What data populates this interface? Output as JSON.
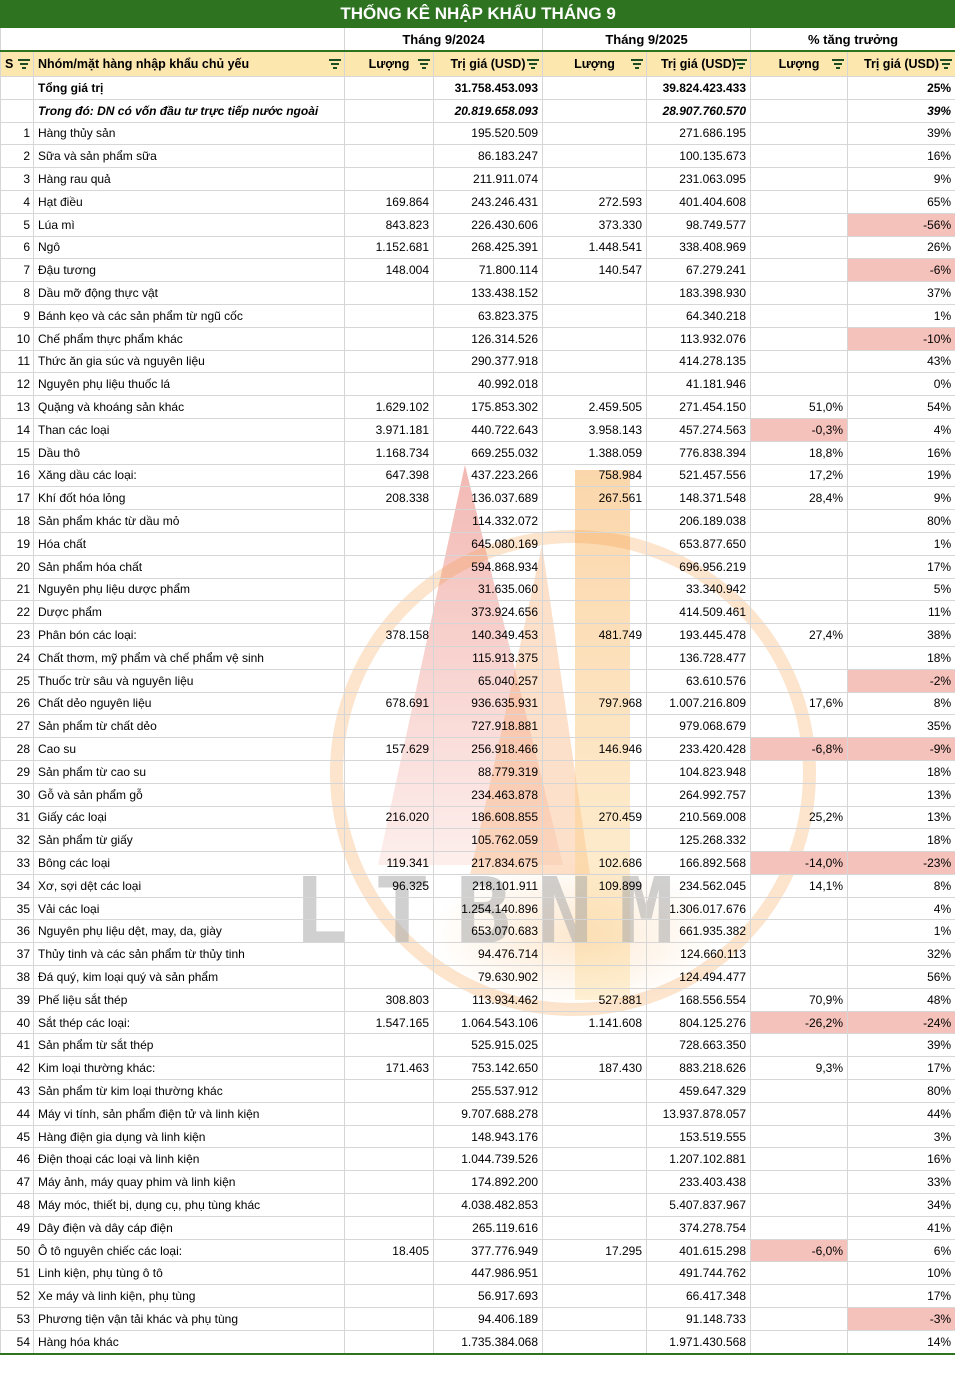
{
  "title": "THỐNG KÊ NHẬP KHẨU THÁNG 9",
  "groups": {
    "g2024": "Tháng 9/2024",
    "g2025": "Tháng 9/2025",
    "growth": "% tăng trưởng"
  },
  "columns": {
    "stt": "S",
    "name": "Nhóm/mặt hàng nhập khẩu chủ yếu",
    "qty": "Lượng",
    "value": "Trị giá (USD)"
  },
  "watermark": {
    "text": "LTBNM"
  },
  "colors": {
    "title_green": "#2E7320",
    "header_yellow": "#FCE7AE",
    "negative_pink": "#F4C2BB"
  },
  "summary": [
    {
      "stt": "",
      "name": "Tổng giá trị",
      "l24": "",
      "t24": "31.758.453.093",
      "l25": "",
      "t25": "39.824.423.433",
      "gl": "",
      "gt": "25%"
    },
    {
      "stt": "",
      "name": "Trong đó: DN có vốn đầu tư trực tiếp nước ngoài",
      "l24": "",
      "t24": "20.819.658.093",
      "l25": "",
      "t25": "28.907.760.570",
      "gl": "",
      "gt": "39%"
    }
  ],
  "rows": [
    {
      "stt": "1",
      "name": "Hàng thủy sản",
      "l24": "",
      "t24": "195.520.509",
      "l25": "",
      "t25": "271.686.195",
      "gl": "",
      "gt": "39%"
    },
    {
      "stt": "2",
      "name": "Sữa và sản phẩm sữa",
      "l24": "",
      "t24": "86.183.247",
      "l25": "",
      "t25": "100.135.673",
      "gl": "",
      "gt": "16%"
    },
    {
      "stt": "3",
      "name": "Hàng rau quả",
      "l24": "",
      "t24": "211.911.074",
      "l25": "",
      "t25": "231.063.095",
      "gl": "",
      "gt": "9%"
    },
    {
      "stt": "4",
      "name": "Hạt điều",
      "l24": "169.864",
      "t24": "243.246.431",
      "l25": "272.593",
      "t25": "401.404.608",
      "gl": "",
      "gt": "65%"
    },
    {
      "stt": "5",
      "name": "Lúa mì",
      "l24": "843.823",
      "t24": "226.430.606",
      "l25": "373.330",
      "t25": "98.749.577",
      "gl": "",
      "gt": "-56%"
    },
    {
      "stt": "6",
      "name": "Ngô",
      "l24": "1.152.681",
      "t24": "268.425.391",
      "l25": "1.448.541",
      "t25": "338.408.969",
      "gl": "",
      "gt": "26%"
    },
    {
      "stt": "7",
      "name": "Đậu tương",
      "l24": "148.004",
      "t24": "71.800.114",
      "l25": "140.547",
      "t25": "67.279.241",
      "gl": "",
      "gt": "-6%"
    },
    {
      "stt": "8",
      "name": "Dầu mỡ động thực vật",
      "l24": "",
      "t24": "133.438.152",
      "l25": "",
      "t25": "183.398.930",
      "gl": "",
      "gt": "37%"
    },
    {
      "stt": "9",
      "name": "Bánh kẹo và các sản phẩm từ ngũ cốc",
      "l24": "",
      "t24": "63.823.375",
      "l25": "",
      "t25": "64.340.218",
      "gl": "",
      "gt": "1%"
    },
    {
      "stt": "10",
      "name": "Chế phẩm thực phẩm khác",
      "l24": "",
      "t24": "126.314.526",
      "l25": "",
      "t25": "113.932.076",
      "gl": "",
      "gt": "-10%"
    },
    {
      "stt": "11",
      "name": "Thức ăn gia súc và nguyên liệu",
      "l24": "",
      "t24": "290.377.918",
      "l25": "",
      "t25": "414.278.135",
      "gl": "",
      "gt": "43%"
    },
    {
      "stt": "12",
      "name": "Nguyên phụ liệu thuốc lá",
      "l24": "",
      "t24": "40.992.018",
      "l25": "",
      "t25": "41.181.946",
      "gl": "",
      "gt": "0%"
    },
    {
      "stt": "13",
      "name": "Quặng và khoáng sản khác",
      "l24": "1.629.102",
      "t24": "175.853.302",
      "l25": "2.459.505",
      "t25": "271.454.150",
      "gl": "51,0%",
      "gt": "54%"
    },
    {
      "stt": "14",
      "name": "Than các loại",
      "l24": "3.971.181",
      "t24": "440.722.643",
      "l25": "3.958.143",
      "t25": "457.274.563",
      "gl": "-0,3%",
      "gt": "4%"
    },
    {
      "stt": "15",
      "name": "Dầu thô",
      "l24": "1.168.734",
      "t24": "669.255.032",
      "l25": "1.388.059",
      "t25": "776.838.394",
      "gl": "18,8%",
      "gt": "16%"
    },
    {
      "stt": "16",
      "name": "Xăng dầu các loại:",
      "l24": "647.398",
      "t24": "437.223.266",
      "l25": "758.984",
      "t25": "521.457.556",
      "gl": "17,2%",
      "gt": "19%"
    },
    {
      "stt": "17",
      "name": "Khí đốt hóa lỏng",
      "l24": "208.338",
      "t24": "136.037.689",
      "l25": "267.561",
      "t25": "148.371.548",
      "gl": "28,4%",
      "gt": "9%"
    },
    {
      "stt": "18",
      "name": "Sản phẩm khác từ dầu mỏ",
      "l24": "",
      "t24": "114.332.072",
      "l25": "",
      "t25": "206.189.038",
      "gl": "",
      "gt": "80%"
    },
    {
      "stt": "19",
      "name": "Hóa chất",
      "l24": "",
      "t24": "645.080.169",
      "l25": "",
      "t25": "653.877.650",
      "gl": "",
      "gt": "1%"
    },
    {
      "stt": "20",
      "name": "Sản phẩm hóa chất",
      "l24": "",
      "t24": "594.868.934",
      "l25": "",
      "t25": "696.956.219",
      "gl": "",
      "gt": "17%"
    },
    {
      "stt": "21",
      "name": "Nguyên phụ liệu dược phẩm",
      "l24": "",
      "t24": "31.635.060",
      "l25": "",
      "t25": "33.340.942",
      "gl": "",
      "gt": "5%"
    },
    {
      "stt": "22",
      "name": "Dược phẩm",
      "l24": "",
      "t24": "373.924.656",
      "l25": "",
      "t25": "414.509.461",
      "gl": "",
      "gt": "11%"
    },
    {
      "stt": "23",
      "name": "Phân bón các loại:",
      "l24": "378.158",
      "t24": "140.349.453",
      "l25": "481.749",
      "t25": "193.445.478",
      "gl": "27,4%",
      "gt": "38%"
    },
    {
      "stt": "24",
      "name": "Chất thơm, mỹ phẩm và chế phẩm vệ sinh",
      "l24": "",
      "t24": "115.913.375",
      "l25": "",
      "t25": "136.728.477",
      "gl": "",
      "gt": "18%"
    },
    {
      "stt": "25",
      "name": "Thuốc trừ sâu và nguyên liệu",
      "l24": "",
      "t24": "65.040.257",
      "l25": "",
      "t25": "63.610.576",
      "gl": "",
      "gt": "-2%"
    },
    {
      "stt": "26",
      "name": "Chất dẻo nguyên liệu",
      "l24": "678.691",
      "t24": "936.635.931",
      "l25": "797.968",
      "t25": "1.007.216.809",
      "gl": "17,6%",
      "gt": "8%"
    },
    {
      "stt": "27",
      "name": "Sản phẩm từ chất dẻo",
      "l24": "",
      "t24": "727.918.881",
      "l25": "",
      "t25": "979.068.679",
      "gl": "",
      "gt": "35%"
    },
    {
      "stt": "28",
      "name": "Cao su",
      "l24": "157.629",
      "t24": "256.918.466",
      "l25": "146.946",
      "t25": "233.420.428",
      "gl": "-6,8%",
      "gt": "-9%"
    },
    {
      "stt": "29",
      "name": "Sản phẩm từ cao su",
      "l24": "",
      "t24": "88.779.319",
      "l25": "",
      "t25": "104.823.948",
      "gl": "",
      "gt": "18%"
    },
    {
      "stt": "30",
      "name": "Gỗ và sản phẩm gỗ",
      "l24": "",
      "t24": "234.463.878",
      "l25": "",
      "t25": "264.992.757",
      "gl": "",
      "gt": "13%"
    },
    {
      "stt": "31",
      "name": "Giấy các loại",
      "l24": "216.020",
      "t24": "186.608.855",
      "l25": "270.459",
      "t25": "210.569.008",
      "gl": "25,2%",
      "gt": "13%"
    },
    {
      "stt": "32",
      "name": "Sản phẩm từ giấy",
      "l24": "",
      "t24": "105.762.059",
      "l25": "",
      "t25": "125.268.332",
      "gl": "",
      "gt": "18%"
    },
    {
      "stt": "33",
      "name": "Bông các loại",
      "l24": "119.341",
      "t24": "217.834.675",
      "l25": "102.686",
      "t25": "166.892.568",
      "gl": "-14,0%",
      "gt": "-23%"
    },
    {
      "stt": "34",
      "name": "Xơ, sợi dệt các loại",
      "l24": "96.325",
      "t24": "218.101.911",
      "l25": "109.899",
      "t25": "234.562.045",
      "gl": "14,1%",
      "gt": "8%"
    },
    {
      "stt": "35",
      "name": "Vải các loại",
      "l24": "",
      "t24": "1.254.140.896",
      "l25": "",
      "t25": "1.306.017.676",
      "gl": "",
      "gt": "4%"
    },
    {
      "stt": "36",
      "name": "Nguyên phụ liệu dệt, may, da, giày",
      "l24": "",
      "t24": "653.070.683",
      "l25": "",
      "t25": "661.935.382",
      "gl": "",
      "gt": "1%"
    },
    {
      "stt": "37",
      "name": "Thủy tinh và các sản phẩm từ thủy tinh",
      "l24": "",
      "t24": "94.476.714",
      "l25": "",
      "t25": "124.660.113",
      "gl": "",
      "gt": "32%"
    },
    {
      "stt": "38",
      "name": "Đá quý, kim loại quý và sản phẩm",
      "l24": "",
      "t24": "79.630.902",
      "l25": "",
      "t25": "124.494.477",
      "gl": "",
      "gt": "56%"
    },
    {
      "stt": "39",
      "name": "Phế liệu sắt thép",
      "l24": "308.803",
      "t24": "113.934.462",
      "l25": "527.881",
      "t25": "168.556.554",
      "gl": "70,9%",
      "gt": "48%"
    },
    {
      "stt": "40",
      "name": "Sắt thép các loại:",
      "l24": "1.547.165",
      "t24": "1.064.543.106",
      "l25": "1.141.608",
      "t25": "804.125.276",
      "gl": "-26,2%",
      "gt": "-24%"
    },
    {
      "stt": "41",
      "name": "Sản phẩm từ sắt thép",
      "l24": "",
      "t24": "525.915.025",
      "l25": "",
      "t25": "728.663.350",
      "gl": "",
      "gt": "39%"
    },
    {
      "stt": "42",
      "name": "Kim loại thường khác:",
      "l24": "171.463",
      "t24": "753.142.650",
      "l25": "187.430",
      "t25": "883.218.626",
      "gl": "9,3%",
      "gt": "17%"
    },
    {
      "stt": "43",
      "name": "Sản phẩm từ kim loại thường khác",
      "l24": "",
      "t24": "255.537.912",
      "l25": "",
      "t25": "459.647.329",
      "gl": "",
      "gt": "80%"
    },
    {
      "stt": "44",
      "name": "Máy vi tính, sản phẩm điện tử và linh kiện",
      "l24": "",
      "t24": "9.707.688.278",
      "l25": "",
      "t25": "13.937.878.057",
      "gl": "",
      "gt": "44%"
    },
    {
      "stt": "45",
      "name": "Hàng điện gia dụng và linh kiện",
      "l24": "",
      "t24": "148.943.176",
      "l25": "",
      "t25": "153.519.555",
      "gl": "",
      "gt": "3%"
    },
    {
      "stt": "46",
      "name": "Điện thoại các loại và linh kiện",
      "l24": "",
      "t24": "1.044.739.526",
      "l25": "",
      "t25": "1.207.102.881",
      "gl": "",
      "gt": "16%"
    },
    {
      "stt": "47",
      "name": "Máy ảnh, máy quay phim và linh kiện",
      "l24": "",
      "t24": "174.892.200",
      "l25": "",
      "t25": "233.403.438",
      "gl": "",
      "gt": "33%"
    },
    {
      "stt": "48",
      "name": "Máy móc, thiết bị, dụng cụ, phụ tùng khác",
      "l24": "",
      "t24": "4.038.482.853",
      "l25": "",
      "t25": "5.407.837.967",
      "gl": "",
      "gt": "34%"
    },
    {
      "stt": "49",
      "name": "Dây điện và dây cáp điện",
      "l24": "",
      "t24": "265.119.616",
      "l25": "",
      "t25": "374.278.754",
      "gl": "",
      "gt": "41%"
    },
    {
      "stt": "50",
      "name": "Ô tô nguyên chiếc các loại:",
      "l24": "18.405",
      "t24": "377.776.949",
      "l25": "17.295",
      "t25": "401.615.298",
      "gl": "-6,0%",
      "gt": "6%"
    },
    {
      "stt": "51",
      "name": "Linh kiện, phụ tùng ô tô",
      "l24": "",
      "t24": "447.986.951",
      "l25": "",
      "t25": "491.744.762",
      "gl": "",
      "gt": "10%"
    },
    {
      "stt": "52",
      "name": "Xe máy và linh kiện, phụ tùng",
      "l24": "",
      "t24": "56.917.693",
      "l25": "",
      "t25": "66.417.348",
      "gl": "",
      "gt": "17%"
    },
    {
      "stt": "53",
      "name": "Phương tiện vận tải khác và phụ tùng",
      "l24": "",
      "t24": "94.406.189",
      "l25": "",
      "t25": "91.148.733",
      "gl": "",
      "gt": "-3%"
    },
    {
      "stt": "54",
      "name": "Hàng hóa khác",
      "l24": "",
      "t24": "1.735.384.068",
      "l25": "",
      "t25": "1.971.430.568",
      "gl": "",
      "gt": "14%"
    }
  ]
}
